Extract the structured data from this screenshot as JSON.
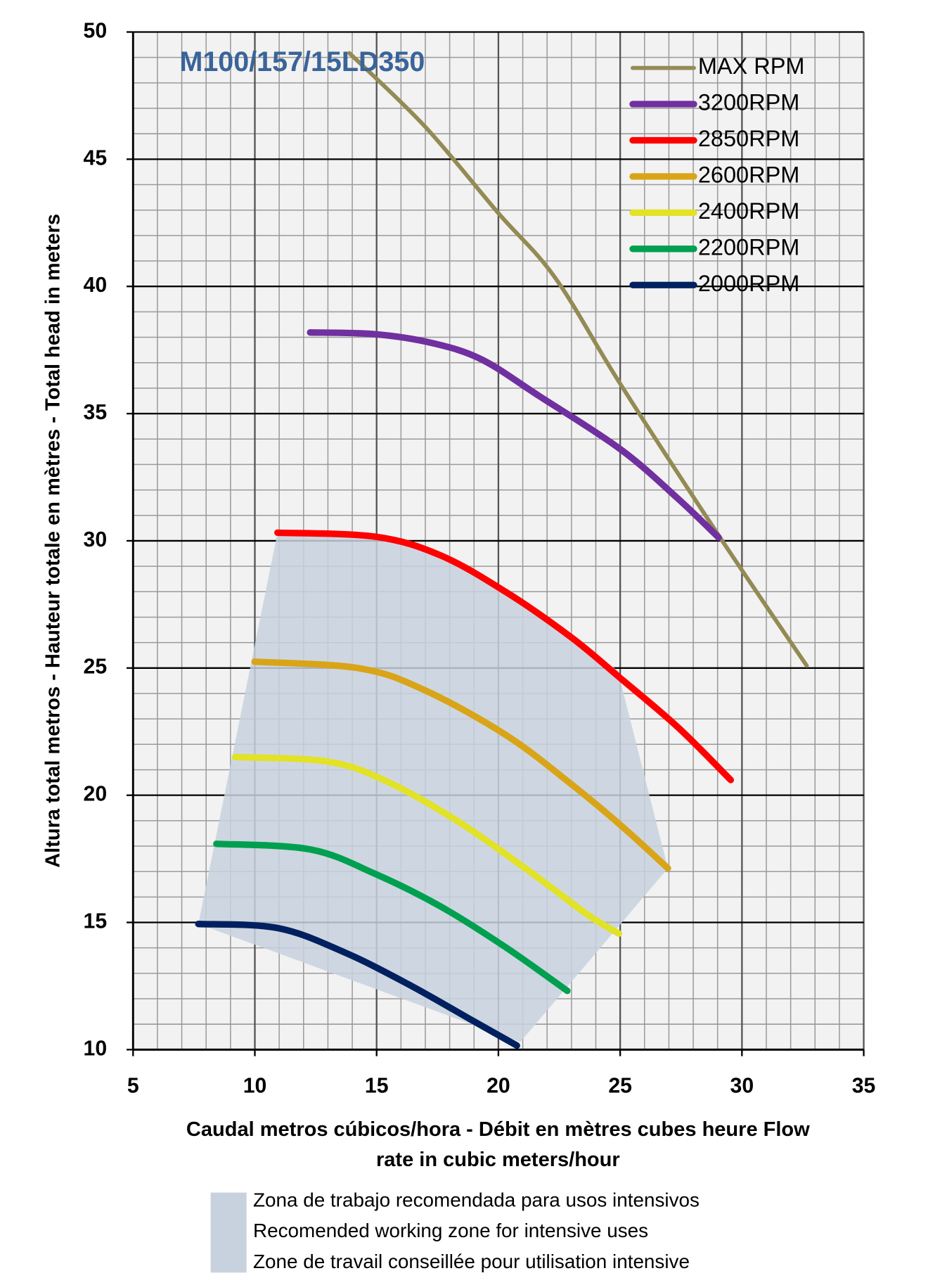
{
  "chart_data": {
    "type": "line",
    "title": "M100/157/15LD350",
    "xlabel": [
      "Caudal metros cúbicos/hora - Débit en mètres cubes heure  Flow",
      "rate in cubic meters/hour"
    ],
    "ylabel": "Altura total metros - Hauteur totale en mètres - Total head in meters",
    "xlim": [
      5,
      35
    ],
    "xticks": [
      5,
      10,
      15,
      20,
      25,
      30,
      35
    ],
    "ylim": [
      10,
      50
    ],
    "yticks": [
      10,
      15,
      20,
      25,
      30,
      35,
      40,
      45,
      50
    ],
    "grid": true,
    "legend": "upper right",
    "series": [
      {
        "name": "MAX RPM",
        "color": "#948a54",
        "x": [
          13.88,
          16.97,
          19.98,
          22.33,
          25.01,
          29.04,
          32.66
        ],
        "values": [
          49.17,
          46.3,
          42.9,
          40.34,
          36.16,
          30.22,
          25.09
        ]
      },
      {
        "name": "3200RPM",
        "color": "#7030a0",
        "x": [
          12.27,
          14.96,
          17.3,
          19.31,
          21.66,
          25.01,
          27.36,
          29.04
        ],
        "values": [
          38.19,
          38.12,
          37.77,
          37.13,
          35.7,
          33.6,
          31.67,
          30.13
        ]
      },
      {
        "name": "2850RPM",
        "color": "#ff0000",
        "x": [
          10.93,
          14.96,
          17.64,
          20.32,
          23.0,
          25.01,
          27.36,
          29.54
        ],
        "values": [
          30.32,
          30.16,
          29.42,
          27.98,
          26.2,
          24.6,
          22.68,
          20.6
        ]
      },
      {
        "name": "2600RPM",
        "color": "#d9a418",
        "x": [
          9.99,
          14.29,
          16.97,
          20.32,
          23.0,
          25.01,
          26.96
        ],
        "values": [
          25.25,
          24.99,
          24.13,
          22.36,
          20.43,
          18.83,
          17.13
        ]
      },
      {
        "name": "2400RPM",
        "color": "#e2e226",
        "x": [
          9.19,
          12.94,
          15.29,
          18.31,
          21.33,
          23.67,
          24.95
        ],
        "values": [
          21.5,
          21.33,
          20.6,
          18.99,
          16.97,
          15.3,
          14.56
        ]
      },
      {
        "name": "2200RPM",
        "color": "#00a050",
        "x": [
          8.42,
          12.27,
          14.96,
          17.64,
          20.32,
          22.83
        ],
        "values": [
          18.09,
          17.87,
          16.9,
          15.62,
          14.01,
          12.31
        ]
      },
      {
        "name": "2000RPM",
        "color": "#002060",
        "x": [
          7.68,
          10.93,
          13.62,
          16.3,
          18.98,
          20.76
        ],
        "values": [
          14.94,
          14.78,
          13.85,
          12.57,
          11.12,
          10.16
        ]
      }
    ],
    "zone": {
      "label": [
        "Zona de trabajo recomendada para usos intensivos",
        "Recomended working zone for intensive uses",
        "Zone de travail conseillée pour utilisation intensive"
      ],
      "color": "#c8d2de",
      "x": [
        7.68,
        10.93,
        14.96,
        17.64,
        20.32,
        23.0,
        24.9,
        26.96,
        20.9
      ],
      "values": [
        14.94,
        30.32,
        30.16,
        29.42,
        27.98,
        26.2,
        24.9,
        17.13,
        10.3
      ]
    }
  }
}
